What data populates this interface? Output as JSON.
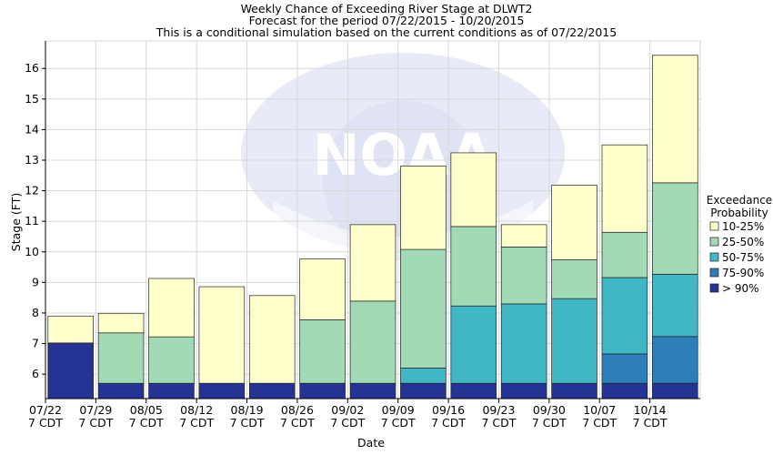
{
  "chart_data": {
    "type": "bar",
    "stacked": true,
    "title_lines": [
      "Weekly Chance of Exceeding River Stage at DLWT2",
      "Forecast for the period 07/22/2015 - 10/20/2015",
      "This is a conditional simulation based on the current conditions as of 07/22/2015"
    ],
    "xlabel": "Date",
    "ylabel": "Stage (FT)",
    "ylim": [
      5.2,
      16.9
    ],
    "yticks": [
      6,
      7,
      8,
      9,
      10,
      11,
      12,
      13,
      14,
      15,
      16
    ],
    "xticks": [
      {
        "date": "07/22",
        "time": "7 CDT"
      },
      {
        "date": "07/29",
        "time": "7 CDT"
      },
      {
        "date": "08/05",
        "time": "7 CDT"
      },
      {
        "date": "08/12",
        "time": "7 CDT"
      },
      {
        "date": "08/19",
        "time": "7 CDT"
      },
      {
        "date": "08/26",
        "time": "7 CDT"
      },
      {
        "date": "09/02",
        "time": "7 CDT"
      },
      {
        "date": "09/09",
        "time": "7 CDT"
      },
      {
        "date": "09/16",
        "time": "7 CDT"
      },
      {
        "date": "09/23",
        "time": "7 CDT"
      },
      {
        "date": "09/30",
        "time": "7 CDT"
      },
      {
        "date": "10/07",
        "time": "7 CDT"
      },
      {
        "date": "10/14",
        "time": "7 CDT"
      }
    ],
    "legend": {
      "title_lines": [
        "Exceedance",
        "Probability"
      ],
      "position": "right",
      "items": [
        {
          "label": "10-25%",
          "color": "#ffffcc"
        },
        {
          "label": "25-50%",
          "color": "#a1dab4"
        },
        {
          "label": "50-75%",
          "color": "#41b6c4"
        },
        {
          "label": "75-90%",
          "color": "#2c7fb8"
        },
        {
          "label": "> 90%",
          "color": "#253494"
        }
      ]
    },
    "grid": true,
    "watermark": "NOAA",
    "series_levels": [
      "> 90%",
      "75-90%",
      "50-75%",
      "25-50%",
      "10-25%"
    ],
    "weeks": [
      {
        "levels": [
          7.02,
          7.02,
          7.02,
          7.02,
          7.9
        ]
      },
      {
        "levels": [
          5.7,
          5.7,
          5.7,
          7.35,
          7.99
        ]
      },
      {
        "levels": [
          5.7,
          5.7,
          5.7,
          7.22,
          9.13
        ]
      },
      {
        "levels": [
          5.7,
          5.7,
          5.7,
          5.7,
          8.86
        ]
      },
      {
        "levels": [
          5.7,
          5.7,
          5.7,
          5.7,
          8.57
        ]
      },
      {
        "levels": [
          5.7,
          5.7,
          5.7,
          7.78,
          9.77
        ]
      },
      {
        "levels": [
          5.7,
          5.7,
          5.7,
          8.39,
          10.89
        ]
      },
      {
        "levels": [
          5.7,
          5.7,
          6.2,
          10.08,
          12.81
        ]
      },
      {
        "levels": [
          5.7,
          5.7,
          8.23,
          10.83,
          13.24
        ]
      },
      {
        "levels": [
          5.7,
          5.7,
          8.3,
          10.16,
          10.89
        ]
      },
      {
        "levels": [
          5.7,
          5.7,
          8.47,
          9.74,
          12.18
        ]
      },
      {
        "levels": [
          5.7,
          6.66,
          9.16,
          10.64,
          13.5
        ]
      },
      {
        "levels": [
          5.7,
          7.23,
          9.27,
          12.26,
          16.43
        ]
      }
    ]
  }
}
